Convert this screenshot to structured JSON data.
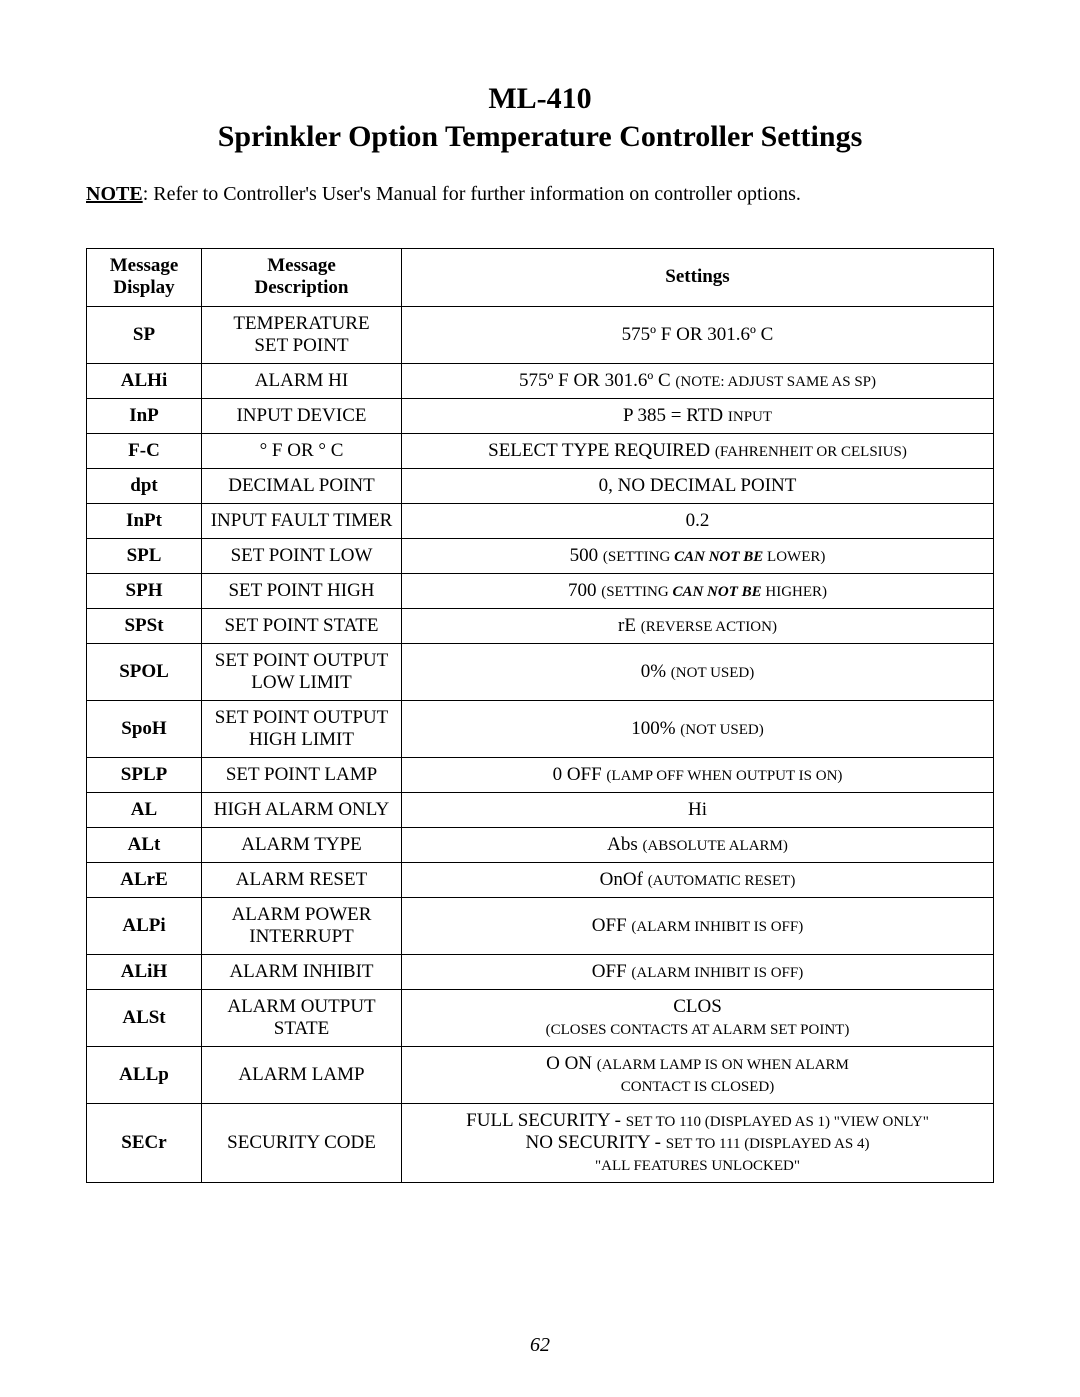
{
  "title": {
    "model": "ML-410",
    "subtitle": "Sprinkler Option Temperature Controller Settings"
  },
  "note": {
    "label": "NOTE",
    "sep": ": ",
    "text": "Refer to Controller's User's Manual for further information on controller options."
  },
  "headers": {
    "display1": "Message",
    "display2": "Display",
    "desc1": "Message",
    "desc2": "Description",
    "settings": "Settings"
  },
  "rows": [
    {
      "display": "SP",
      "desc": "TEMPERATURE\nSET POINT",
      "set_main": "575º F OR 301.6º C",
      "set_note": ""
    },
    {
      "display": "ALHi",
      "desc": "ALARM HI",
      "set_main": "575º F OR 301.6º C ",
      "set_note": "(NOTE: ADJUST SAME AS SP)"
    },
    {
      "display": "InP",
      "desc": "INPUT DEVICE",
      "set_main": "P 385 = RTD ",
      "set_note": "INPUT"
    },
    {
      "display": "F-C",
      "desc": "° F OR ° C",
      "set_main": "SELECT TYPE REQUIRED ",
      "set_note": "(FAHRENHEIT OR CELSIUS)"
    },
    {
      "display": "dpt",
      "desc": "DECIMAL POINT",
      "set_main": "0, NO DECIMAL POINT",
      "set_note": ""
    },
    {
      "display": "InPt",
      "desc": "INPUT FAULT TIMER",
      "set_main": "0.2",
      "set_note": ""
    },
    {
      "display": "SPL",
      "desc": "SET POINT LOW",
      "set_main": "500 ",
      "set_note_pre": "(SETTING ",
      "set_note_ital": "CAN NOT BE",
      "set_note_post": " LOWER)"
    },
    {
      "display": "SPH",
      "desc": "SET POINT HIGH",
      "set_main": "700 ",
      "set_note_pre": "(SETTING ",
      "set_note_ital": "CAN NOT BE",
      "set_note_post": " HIGHER)"
    },
    {
      "display": "SPSt",
      "desc": "SET POINT STATE",
      "set_main": "rE ",
      "set_note": "(REVERSE ACTION)"
    },
    {
      "display": "SPOL",
      "desc": "SET POINT OUTPUT\nLOW LIMIT",
      "set_main": "0% ",
      "set_note": "(NOT USED)"
    },
    {
      "display": "SpoH",
      "desc": "SET POINT OUTPUT\nHIGH LIMIT",
      "set_main": "100% ",
      "set_note": "(NOT USED)"
    },
    {
      "display": "SPLP",
      "desc": "SET POINT LAMP",
      "set_main": "0 OFF ",
      "set_note": "(LAMP OFF WHEN OUTPUT IS ON)"
    },
    {
      "display": "AL",
      "desc": "HIGH ALARM ONLY",
      "set_main": "Hi",
      "set_note": ""
    },
    {
      "display": "ALt",
      "desc": "ALARM TYPE",
      "set_main": "Abs ",
      "set_note": "(ABSOLUTE ALARM)"
    },
    {
      "display": "ALrE",
      "desc": "ALARM RESET",
      "set_main": "OnOf ",
      "set_note": "(AUTOMATIC RESET)"
    },
    {
      "display": "ALPi",
      "desc": "ALARM POWER\nINTERRUPT",
      "set_main": "OFF ",
      "set_note": "(ALARM INHIBIT IS OFF)"
    },
    {
      "display": "ALiH",
      "desc": "ALARM INHIBIT",
      "set_main": "OFF ",
      "set_note": "(ALARM INHIBIT IS OFF)"
    },
    {
      "display": "ALSt",
      "desc": "ALARM OUTPUT\nSTATE",
      "set_main": "CLOS",
      "set_note_line2": "(CLOSES CONTACTS AT ALARM SET POINT)"
    },
    {
      "display": "ALLp",
      "desc": "ALARM LAMP",
      "set_main": "O ON ",
      "set_note": "(ALARM LAMP IS ON WHEN ALARM",
      "set_note_line2b": "CONTACT IS CLOSED)"
    },
    {
      "display": "SECr",
      "desc": "SECURITY CODE",
      "secr_line1a": "FULL SECURITY - ",
      "secr_line1b": "SET TO 110 (DISPLAYED AS 1) \"VIEW ONLY\"",
      "secr_line2a": "NO SECURITY - ",
      "secr_line2b": "SET TO 111 (DISPLAYED AS 4)",
      "secr_line3": "\"ALL FEATURES UNLOCKED\""
    }
  ],
  "page_number": "62"
}
